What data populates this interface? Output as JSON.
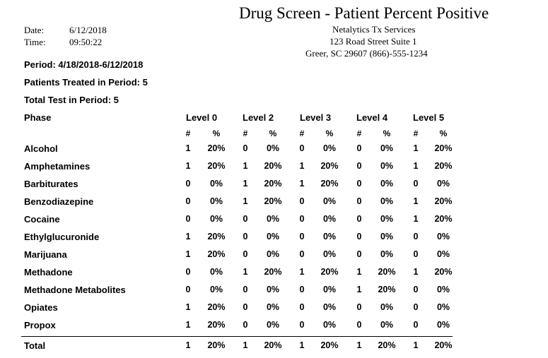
{
  "report": {
    "title": "Drug Screen - Patient Percent Positive",
    "date_label": "Date:",
    "date": "6/12/2018",
    "time_label": "Time:",
    "time": "09:50:22",
    "company": {
      "name": "Netalytics Tx Services",
      "address": "123 Road Street Suite 1",
      "city_phone": "Greer, SC  29607    (866)-555-1234"
    },
    "period": "Period: 4/18/2018-6/12/2018",
    "patients_treated": "Patients Treated in Period: 5",
    "total_tests": "Total Test in Period: 5"
  },
  "table": {
    "phase_header": "Phase",
    "levels": [
      "Level 0",
      "Level 2",
      "Level 3",
      "Level 4",
      "Level 5"
    ],
    "count_header": "#",
    "pct_header": "%",
    "rows": [
      {
        "name": "Alcohol",
        "values": [
          "1",
          "20%",
          "0",
          "0%",
          "0",
          "0%",
          "0",
          "0%",
          "1",
          "20%"
        ]
      },
      {
        "name": "Amphetamines",
        "values": [
          "1",
          "20%",
          "1",
          "20%",
          "1",
          "20%",
          "0",
          "0%",
          "1",
          "20%"
        ]
      },
      {
        "name": "Barbiturates",
        "values": [
          "0",
          "0%",
          "1",
          "20%",
          "1",
          "20%",
          "0",
          "0%",
          "0",
          "0%"
        ]
      },
      {
        "name": "Benzodiazepine",
        "values": [
          "0",
          "0%",
          "1",
          "20%",
          "0",
          "0%",
          "0",
          "0%",
          "1",
          "20%"
        ]
      },
      {
        "name": "Cocaine",
        "values": [
          "0",
          "0%",
          "0",
          "0%",
          "0",
          "0%",
          "0",
          "0%",
          "1",
          "20%"
        ]
      },
      {
        "name": "Ethylglucuronide",
        "values": [
          "1",
          "20%",
          "0",
          "0%",
          "0",
          "0%",
          "0",
          "0%",
          "0",
          "0%"
        ]
      },
      {
        "name": "Marijuana",
        "values": [
          "1",
          "20%",
          "0",
          "0%",
          "0",
          "0%",
          "0",
          "0%",
          "0",
          "0%"
        ]
      },
      {
        "name": "Methadone",
        "values": [
          "0",
          "0%",
          "1",
          "20%",
          "1",
          "20%",
          "1",
          "20%",
          "1",
          "20%"
        ]
      },
      {
        "name": "Methadone Metabolites",
        "values": [
          "0",
          "0%",
          "0",
          "0%",
          "0",
          "0%",
          "1",
          "20%",
          "0",
          "0%"
        ]
      },
      {
        "name": "Opiates",
        "values": [
          "1",
          "20%",
          "0",
          "0%",
          "0",
          "0%",
          "0",
          "0%",
          "0",
          "0%"
        ]
      },
      {
        "name": "Propox",
        "values": [
          "1",
          "20%",
          "0",
          "0%",
          "0",
          "0%",
          "0",
          "0%",
          "0",
          "0%"
        ]
      },
      {
        "name": "Total",
        "values": [
          "1",
          "20%",
          "1",
          "20%",
          "1",
          "20%",
          "1",
          "20%",
          "1",
          "20%"
        ]
      }
    ]
  }
}
